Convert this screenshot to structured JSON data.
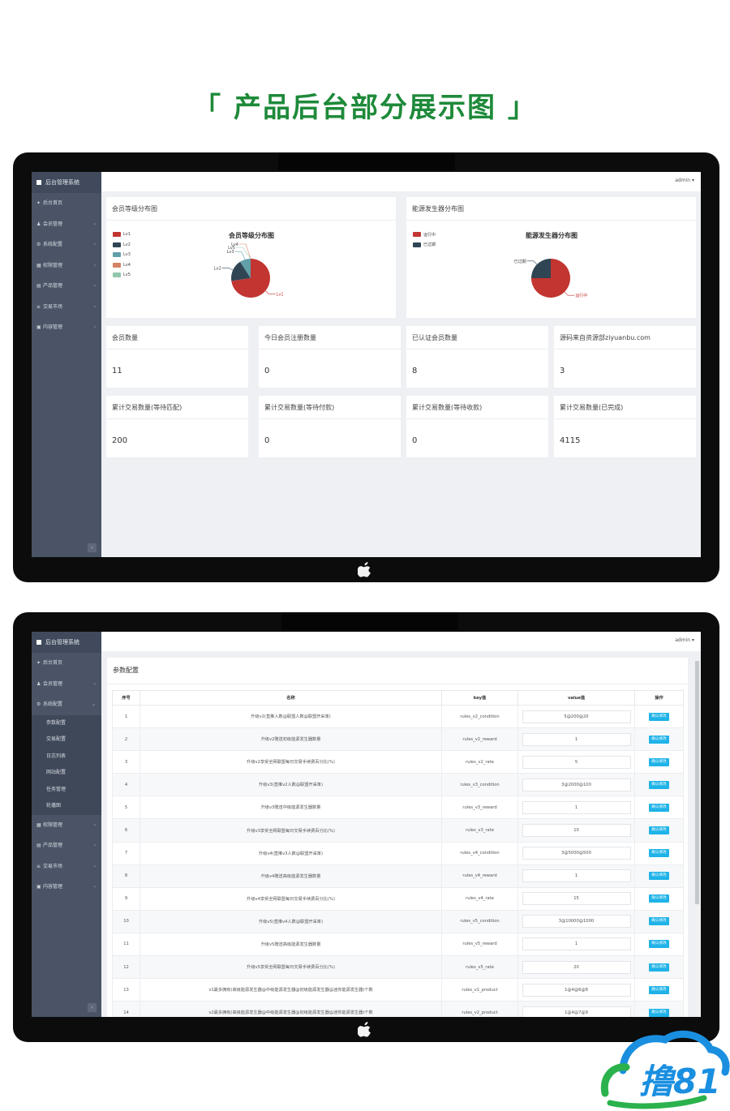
{
  "page_title": "「 产品后台部分展示图 」",
  "app": {
    "name": "后台管理系统",
    "user": "admin"
  },
  "sidebar1": {
    "items": [
      {
        "label": "后台首页",
        "icon": "home-icon",
        "glyph": "✦",
        "arrow": ""
      },
      {
        "label": "会员管理",
        "icon": "user-icon",
        "glyph": "♟",
        "arrow": "›"
      },
      {
        "label": "系统配置",
        "icon": "gear-icon",
        "glyph": "⚙",
        "arrow": "›"
      },
      {
        "label": "权限管理",
        "icon": "shield-icon",
        "glyph": "▦",
        "arrow": "›"
      },
      {
        "label": "产品管理",
        "icon": "box-icon",
        "glyph": "▤",
        "arrow": "›"
      },
      {
        "label": "交易市场",
        "icon": "list-icon",
        "glyph": "≡",
        "arrow": "›"
      },
      {
        "label": "内容管理",
        "icon": "doc-icon",
        "glyph": "▣",
        "arrow": "›"
      }
    ]
  },
  "sidebar2": {
    "items_top": [
      {
        "label": "后台首页",
        "icon": "home-icon",
        "glyph": "✦",
        "arrow": ""
      },
      {
        "label": "会员管理",
        "icon": "user-icon",
        "glyph": "♟",
        "arrow": "›"
      },
      {
        "label": "系统配置",
        "icon": "gear-icon",
        "glyph": "⚙",
        "arrow": "⌄"
      }
    ],
    "sub_items": [
      "参数配置",
      "交易配置",
      "日志列表",
      "网站配置",
      "任务管理",
      "轮播图"
    ],
    "items_bottom": [
      {
        "label": "权限管理",
        "icon": "shield-icon",
        "glyph": "▦",
        "arrow": "›"
      },
      {
        "label": "产品管理",
        "icon": "box-icon",
        "glyph": "▤",
        "arrow": "›"
      },
      {
        "label": "交易市场",
        "icon": "list-icon",
        "glyph": "≡",
        "arrow": "›"
      },
      {
        "label": "内容管理",
        "icon": "doc-icon",
        "glyph": "▣",
        "arrow": "›"
      }
    ]
  },
  "collapse_glyph": "‹",
  "dashboard": {
    "member_card_title": "会员等级分布图",
    "energy_card_title": "能源发生器分布图",
    "stats": [
      {
        "label": "会员数量",
        "value": "11"
      },
      {
        "label": "今日会员注册数量",
        "value": "0"
      },
      {
        "label": "已认证会员数量",
        "value": "8"
      },
      {
        "label": "源码来自资源部ziyuanbu.com",
        "value": "3"
      },
      {
        "label": "累计交易数量(等待匹配)",
        "value": "200"
      },
      {
        "label": "累计交易数量(等待付款)",
        "value": "0"
      },
      {
        "label": "累计交易数量(等待收款)",
        "value": "0"
      },
      {
        "label": "累计交易数量(已完成)",
        "value": "4115"
      }
    ]
  },
  "chart_data": [
    {
      "type": "pie",
      "title": "会员等级分布图",
      "labels": [
        "Lv1",
        "Lv2",
        "Lv3",
        "Lv4",
        "Lv5"
      ],
      "values": [
        8,
        2,
        1,
        0,
        0
      ],
      "colors": [
        "#c23531",
        "#2f4554",
        "#61a0a8",
        "#d48265",
        "#91c7ae"
      ],
      "legend": "top-left"
    },
    {
      "type": "pie",
      "title": "能源发生器分布图",
      "labels": [
        "运行中",
        "已过期"
      ],
      "values": [
        3,
        1
      ],
      "colors": [
        "#c23531",
        "#2f4554"
      ],
      "legend": "top-left"
    }
  ],
  "params": {
    "title": "参数配置",
    "headers": [
      "序号",
      "名称",
      "key值",
      "value值",
      "操作"
    ],
    "button_label": "确认修改",
    "rows": [
      {
        "no": "1",
        "name": "升级v2(直推人数@联盟人数@联盟开采率)",
        "key": "rules_v2_condition",
        "value": "5@200@20"
      },
      {
        "no": "2",
        "name": "升级v2赠送初级能源发生器数量",
        "key": "rules_v2_reward",
        "value": "1"
      },
      {
        "no": "3",
        "name": "升级v2享受全网联盟每日交易手续费百分比(%)",
        "key": "rules_v2_rate",
        "value": "5"
      },
      {
        "no": "4",
        "name": "升级v3(直推v2人数@联盟开采率)",
        "key": "rules_v3_condition",
        "value": "3@2000@100"
      },
      {
        "no": "5",
        "name": "升级v3赠送中级能源发生器数量",
        "key": "rules_v3_reward",
        "value": "1"
      },
      {
        "no": "6",
        "name": "升级v3享受全网联盟每日交易手续费百分比(%)",
        "key": "rules_v3_rate",
        "value": "10"
      },
      {
        "no": "7",
        "name": "升级v4(直推v3人数@联盟开采率)",
        "key": "rules_v4_condition",
        "value": "3@5000@500"
      },
      {
        "no": "8",
        "name": "升级v4赠送高级能源发生器数量",
        "key": "rules_v4_reward",
        "value": "1"
      },
      {
        "no": "9",
        "name": "升级v4享受全网联盟每日交易手续费百分比(%)",
        "key": "rules_v4_rate",
        "value": "15"
      },
      {
        "no": "10",
        "name": "升级v5(直推v4人数@联盟开采率)",
        "key": "rules_v5_condition",
        "value": "3@10000@1000"
      },
      {
        "no": "11",
        "name": "升级v5赠送高级能源发生器数量",
        "key": "rules_v5_reward",
        "value": "1"
      },
      {
        "no": "12",
        "name": "升级v5享受全网联盟每日交易手续费百分比(%)",
        "key": "rules_v5_rate",
        "value": "20"
      },
      {
        "no": "13",
        "name": "v1最多拥有(高级能源发生器@中级能源发生器@初级能源发生器@迷你能源发生器)个数",
        "key": "rules_v1_product",
        "value": "1@4@6@8"
      },
      {
        "no": "14",
        "name": "v2最多拥有(高级能源发生器@中级能源发生器@初级能源发生器@迷你能源发生器)个数",
        "key": "rules_v2_product",
        "value": "1@4@7@9"
      }
    ]
  },
  "watermark_text": "撸81"
}
